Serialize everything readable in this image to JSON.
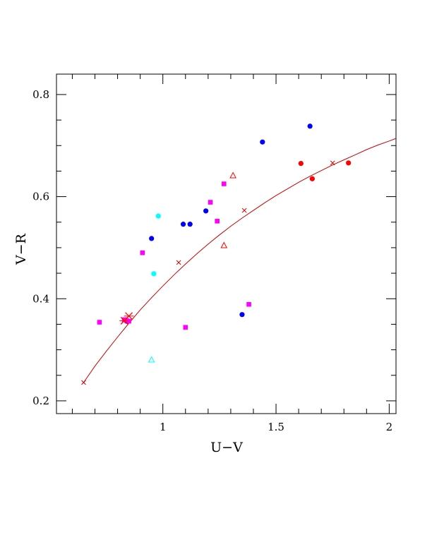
{
  "chart_data": {
    "type": "scatter",
    "xlabel": "U−V",
    "ylabel": "V−R",
    "xlim": [
      0.53,
      2.03
    ],
    "ylim": [
      0.175,
      0.84
    ],
    "x_ticks": [
      {
        "value": 1,
        "label": "1"
      },
      {
        "value": 1.5,
        "label": "1.5"
      },
      {
        "value": 2,
        "label": "2"
      }
    ],
    "y_ticks": [
      {
        "value": 0.2,
        "label": "0.2"
      },
      {
        "value": 0.4,
        "label": "0.4"
      },
      {
        "value": 0.6,
        "label": "0.6"
      },
      {
        "value": 0.8,
        "label": "0.8"
      }
    ],
    "x_minor_step": 0.1,
    "y_minor_step": 0.05,
    "grid": false,
    "colors": {
      "blue": "#0000ff",
      "red": "#ff0000",
      "magenta": "#ff00ff",
      "cyan": "#00ffff",
      "curve": "#cc0000"
    },
    "series": [
      {
        "marker": "filled-circle",
        "color": "#0000ff",
        "points": [
          [
            0.95,
            0.518
          ],
          [
            1.09,
            0.546
          ],
          [
            1.12,
            0.546
          ],
          [
            1.19,
            0.572
          ],
          [
            1.44,
            0.707
          ],
          [
            1.65,
            0.738
          ],
          [
            1.35,
            0.369
          ],
          [
            0.84,
            0.356
          ]
        ]
      },
      {
        "marker": "filled-circle",
        "color": "#ff0000",
        "points": [
          [
            1.61,
            0.665
          ],
          [
            1.66,
            0.635
          ],
          [
            1.82,
            0.666
          ]
        ]
      },
      {
        "marker": "filled-circle",
        "color": "#00ffff",
        "points": [
          [
            0.98,
            0.562
          ],
          [
            0.96,
            0.449
          ]
        ]
      },
      {
        "marker": "filled-square",
        "color": "#ff00ff",
        "points": [
          [
            0.72,
            0.354
          ],
          [
            0.83,
            0.359
          ],
          [
            0.84,
            0.357
          ],
          [
            0.85,
            0.356
          ],
          [
            0.91,
            0.49
          ],
          [
            1.1,
            0.344
          ],
          [
            1.21,
            0.589
          ],
          [
            1.24,
            0.552
          ],
          [
            1.27,
            0.625
          ],
          [
            1.38,
            0.389
          ]
        ]
      },
      {
        "marker": "open-triangle",
        "color": "#ff0000",
        "points": [
          [
            1.31,
            0.641
          ],
          [
            1.27,
            0.504
          ]
        ]
      },
      {
        "marker": "open-triangle",
        "color": "#00ffff",
        "points": [
          [
            0.95,
            0.28
          ]
        ]
      },
      {
        "marker": "cross",
        "color": "#ff0000",
        "points": [
          [
            0.85,
            0.366
          ],
          [
            0.83,
            0.357
          ]
        ]
      }
    ],
    "curve": {
      "color": "#cc0000",
      "points": [
        [
          0.65,
          0.236
        ],
        [
          0.7,
          0.268
        ],
        [
          0.75,
          0.297
        ],
        [
          0.8,
          0.325
        ],
        [
          0.85,
          0.352
        ],
        [
          0.9,
          0.378
        ],
        [
          0.95,
          0.402
        ],
        [
          1.0,
          0.425
        ],
        [
          1.05,
          0.447
        ],
        [
          1.1,
          0.468
        ],
        [
          1.15,
          0.488
        ],
        [
          1.2,
          0.507
        ],
        [
          1.25,
          0.525
        ],
        [
          1.3,
          0.542
        ],
        [
          1.35,
          0.558
        ],
        [
          1.4,
          0.573
        ],
        [
          1.45,
          0.588
        ],
        [
          1.5,
          0.602
        ],
        [
          1.55,
          0.615
        ],
        [
          1.6,
          0.628
        ],
        [
          1.65,
          0.64
        ],
        [
          1.7,
          0.651
        ],
        [
          1.75,
          0.662
        ],
        [
          1.8,
          0.672
        ],
        [
          1.85,
          0.682
        ],
        [
          1.9,
          0.692
        ],
        [
          1.95,
          0.701
        ],
        [
          2.0,
          0.709
        ],
        [
          2.03,
          0.714
        ]
      ],
      "x_markers": [
        [
          0.65,
          0.236
        ],
        [
          1.07,
          0.471
        ],
        [
          1.36,
          0.573
        ],
        [
          1.75,
          0.666
        ]
      ]
    }
  }
}
